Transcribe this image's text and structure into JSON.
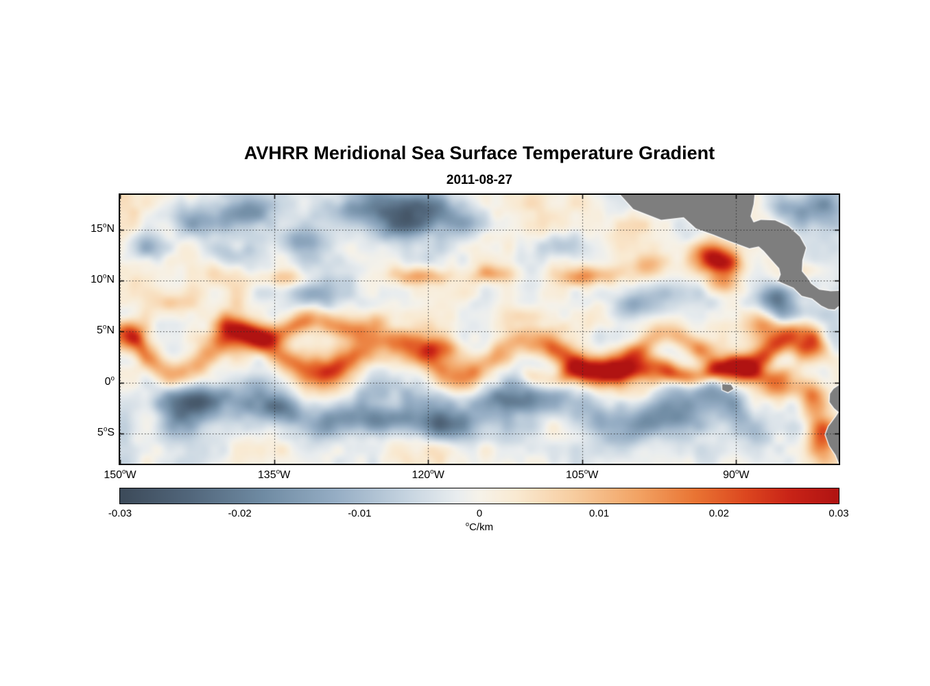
{
  "chart_data": {
    "type": "heatmap",
    "title": "AVHRR Meridional Sea Surface Temperature Gradient",
    "date": "2011-08-27",
    "value_range": [
      -0.03,
      0.03
    ],
    "axes": {
      "deg_symbol": "o",
      "x": {
        "min": -150,
        "max": -80,
        "ticks": [
          {
            "value": -150,
            "num": "150",
            "suffix": "W"
          },
          {
            "value": -135,
            "num": "135",
            "suffix": "W"
          },
          {
            "value": -120,
            "num": "120",
            "suffix": "W"
          },
          {
            "value": -105,
            "num": "105",
            "suffix": "W"
          },
          {
            "value": -90,
            "num": "90",
            "suffix": "W"
          }
        ]
      },
      "y": {
        "min": -7.95,
        "max": 18.4,
        "ticks": [
          {
            "value": 15,
            "num": "15",
            "suffix": "N"
          },
          {
            "value": 10,
            "num": "10",
            "suffix": "N"
          },
          {
            "value": 5,
            "num": "5",
            "suffix": "N"
          },
          {
            "value": 0,
            "num": "0",
            "suffix": ""
          },
          {
            "value": -5,
            "num": "5",
            "suffix": "S"
          }
        ]
      },
      "grid": "dotted"
    },
    "colorbar": {
      "min": -0.03,
      "max": 0.03,
      "unit_sup": "o",
      "unit_text": "C/km",
      "ticks": [
        {
          "value": -0.03,
          "label": "-0.03"
        },
        {
          "value": -0.02,
          "label": "-0.02"
        },
        {
          "value": -0.01,
          "label": "-0.01"
        },
        {
          "value": 0,
          "label": "0"
        },
        {
          "value": 0.01,
          "label": "0.01"
        },
        {
          "value": 0.02,
          "label": "0.02"
        },
        {
          "value": 0.03,
          "label": "0.03"
        }
      ],
      "stops": [
        [
          0.0,
          "#3c4a59"
        ],
        [
          0.1,
          "#52677c"
        ],
        [
          0.2,
          "#6f8ba3"
        ],
        [
          0.3,
          "#95adc4"
        ],
        [
          0.4,
          "#c6d4e0"
        ],
        [
          0.47,
          "#e9edef"
        ],
        [
          0.5,
          "#f6f2e9"
        ],
        [
          0.55,
          "#f9ead2"
        ],
        [
          0.63,
          "#f7cda0"
        ],
        [
          0.72,
          "#f2a364"
        ],
        [
          0.8,
          "#e97433"
        ],
        [
          0.87,
          "#dc471f"
        ],
        [
          0.93,
          "#c92417"
        ],
        [
          1.0,
          "#b01312"
        ]
      ]
    },
    "land": {
      "fill": "#7e7e7e",
      "coast_outline": "#ffffff",
      "polygons": [
        [
          [
            -101.3,
            18.45
          ],
          [
            -100.0,
            17.0
          ],
          [
            -97.3,
            15.95
          ],
          [
            -95.1,
            16.2
          ],
          [
            -93.9,
            15.1
          ],
          [
            -92.2,
            14.5
          ],
          [
            -90.7,
            13.9
          ],
          [
            -88.7,
            13.15
          ],
          [
            -87.8,
            13.35
          ],
          [
            -87.3,
            12.9
          ],
          [
            -86.6,
            12.1
          ],
          [
            -85.8,
            11.2
          ],
          [
            -85.65,
            10.6
          ],
          [
            -85.9,
            9.95
          ],
          [
            -85.1,
            9.6
          ],
          [
            -84.4,
            9.3
          ],
          [
            -83.6,
            8.5
          ],
          [
            -82.6,
            8.25
          ],
          [
            -81.7,
            7.55
          ],
          [
            -81.0,
            7.2
          ],
          [
            -80.4,
            7.15
          ],
          [
            -79.9,
            7.6
          ],
          [
            -79.85,
            9.0
          ],
          [
            -80.8,
            8.95
          ],
          [
            -81.9,
            9.1
          ],
          [
            -82.7,
            9.7
          ],
          [
            -83.1,
            10.3
          ],
          [
            -83.6,
            10.9
          ],
          [
            -83.55,
            12.0
          ],
          [
            -83.2,
            13.2
          ],
          [
            -83.8,
            14.3
          ],
          [
            -84.9,
            15.3
          ],
          [
            -86.2,
            15.9
          ],
          [
            -87.6,
            15.95
          ],
          [
            -88.3,
            15.7
          ],
          [
            -88.6,
            16.3
          ],
          [
            -88.3,
            17.5
          ],
          [
            -88.2,
            18.45
          ]
        ],
        [
          [
            -79.9,
            -0.2
          ],
          [
            -80.5,
            -0.6
          ],
          [
            -80.85,
            -1.1
          ],
          [
            -80.9,
            -1.9
          ],
          [
            -80.45,
            -2.5
          ],
          [
            -80.0,
            -2.9
          ],
          [
            -80.25,
            -3.3
          ],
          [
            -81.0,
            -4.3
          ],
          [
            -81.3,
            -5.1
          ],
          [
            -80.9,
            -6.2
          ],
          [
            -80.3,
            -7.1
          ],
          [
            -79.9,
            -8.1
          ]
        ],
        [
          [
            -91.35,
            -0.15
          ],
          [
            -90.5,
            -0.2
          ],
          [
            -90.25,
            -0.6
          ],
          [
            -90.8,
            -0.95
          ],
          [
            -91.35,
            -0.7
          ]
        ]
      ]
    },
    "field": {
      "seed": 7,
      "noise": {
        "amp": 0.01,
        "octaves": [
          {
            "scale": 5.0,
            "weight": 0.45
          },
          {
            "scale": 2.2,
            "weight": 0.35
          },
          {
            "scale": 1.1,
            "weight": 0.2
          }
        ]
      },
      "bands": [
        {
          "amp": 0.027,
          "lat0": 2.7,
          "latAmp": 1.7,
          "wave": 13.5,
          "phase": 2.0,
          "width": 1.05,
          "lon0": -150,
          "lon1": -80,
          "modScale": 8,
          "modMin": 0.45
        },
        {
          "amp": 0.02,
          "lat0": 5.4,
          "latAmp": 0.6,
          "wave": 9.0,
          "phase": 0.5,
          "width": 0.8,
          "lon0": -142,
          "lon1": -123,
          "modScale": 7,
          "modMin": 0.6
        },
        {
          "amp": 0.016,
          "lat0": 0.9,
          "latAmp": 0.45,
          "wave": 7.0,
          "phase": 1.2,
          "width": 0.75,
          "lon0": -112,
          "lon1": -83,
          "modScale": 6,
          "modMin": 0.6
        },
        {
          "amp": -0.016,
          "lat0": -2.3,
          "latAmp": 1.2,
          "wave": 15.0,
          "phase": 4.4,
          "width": 1.4,
          "lon0": -147,
          "lon1": -88,
          "modScale": 9,
          "modMin": 0.4
        }
      ],
      "blobs": [
        [
          -147.5,
          13.3,
          -0.013,
          1.8,
          1.0
        ],
        [
          -143,
          15.8,
          -0.015,
          2.2,
          1.1
        ],
        [
          -137.5,
          16.6,
          -0.013,
          1.8,
          0.9
        ],
        [
          -139,
          12.3,
          -0.01,
          1.6,
          0.9
        ],
        [
          -132.5,
          13.8,
          -0.011,
          1.8,
          0.9
        ],
        [
          -126,
          17.5,
          -0.021,
          2.6,
          1.3
        ],
        [
          -120.5,
          17.0,
          -0.019,
          2.2,
          1.2
        ],
        [
          -116.5,
          15.7,
          -0.012,
          1.6,
          1.0
        ],
        [
          -123,
          15.2,
          -0.013,
          1.8,
          0.9
        ],
        [
          -131,
          8.6,
          -0.008,
          1.6,
          0.8
        ],
        [
          -107,
          13.5,
          -0.009,
          1.6,
          0.9
        ],
        [
          -99.5,
          7.6,
          -0.012,
          1.7,
          1.0
        ],
        [
          -97.5,
          3.6,
          -0.012,
          1.8,
          1.0
        ],
        [
          -103,
          4.5,
          -0.009,
          1.6,
          0.9
        ],
        [
          -95.5,
          -3.6,
          -0.013,
          2.0,
          1.1
        ],
        [
          -89,
          -4.6,
          -0.011,
          1.6,
          1.0
        ],
        [
          -86.3,
          8.2,
          -0.016,
          1.3,
          0.9
        ],
        [
          -85.2,
          6.6,
          -0.013,
          1.1,
          0.8
        ],
        [
          -124.5,
          -3.6,
          -0.019,
          2.4,
          1.0
        ],
        [
          -119.5,
          -4.3,
          -0.016,
          2.0,
          0.9
        ],
        [
          -143.5,
          -1.5,
          -0.012,
          2.2,
          0.9
        ],
        [
          -92.5,
          2.2,
          -0.01,
          1.4,
          0.7
        ],
        [
          -81.5,
          17.2,
          -0.014,
          1.5,
          1.2
        ],
        [
          -84.8,
          16.8,
          -0.01,
          1.3,
          0.9
        ],
        [
          -113,
          -1.5,
          -0.011,
          1.8,
          0.8
        ],
        [
          -135.5,
          -2.5,
          -0.012,
          2.0,
          0.9
        ],
        [
          -149.3,
          4.7,
          0.022,
          1.4,
          1.0
        ],
        [
          -134,
          10.2,
          0.01,
          1.6,
          0.6
        ],
        [
          -120.7,
          10.4,
          0.014,
          2.0,
          0.6
        ],
        [
          -113.5,
          10.6,
          0.01,
          1.6,
          0.6
        ],
        [
          -104.5,
          10.4,
          0.016,
          2.2,
          0.7
        ],
        [
          -98.5,
          11.3,
          0.012,
          1.5,
          0.8
        ],
        [
          -92.6,
          12.4,
          0.027,
          1.3,
          1.0
        ],
        [
          -90.9,
          11.5,
          0.022,
          1.1,
          0.9
        ],
        [
          -91.3,
          9.7,
          0.013,
          1.2,
          0.7
        ],
        [
          -87.2,
          5.6,
          0.014,
          1.1,
          0.8
        ],
        [
          -83.3,
          3.2,
          0.015,
          0.9,
          0.9
        ],
        [
          -82.6,
          -1.8,
          0.019,
          0.9,
          1.2
        ],
        [
          -81.6,
          -5.6,
          0.022,
          1.0,
          1.6
        ],
        [
          -85.5,
          -0.5,
          0.016,
          1.5,
          0.8
        ],
        [
          -127.5,
          17.9,
          0.011,
          1.4,
          0.7
        ],
        [
          -119,
          3.4,
          0.018,
          1.3,
          0.9
        ],
        [
          -96,
          0.8,
          0.012,
          2.5,
          0.7
        ],
        [
          -145,
          7.8,
          0.008,
          1.5,
          0.6
        ]
      ]
    }
  }
}
